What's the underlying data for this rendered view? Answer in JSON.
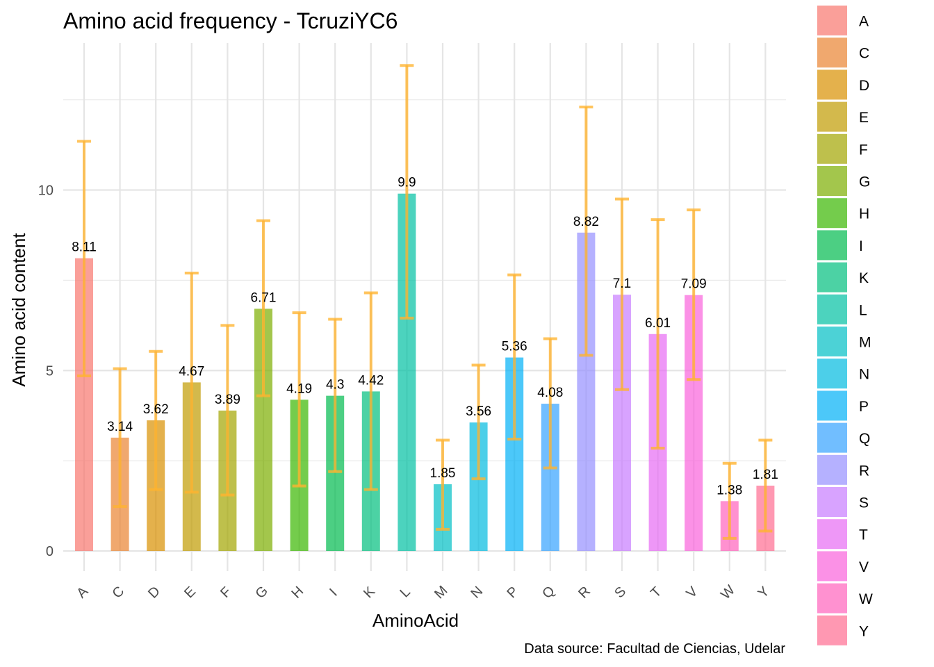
{
  "chart_data": {
    "type": "bar",
    "title": "Amino acid frequency - TcruziYC6",
    "xlabel": "AminoAcid",
    "ylabel": "Amino acid content",
    "caption": "Data source: Facultad de Ciencias, Udelar",
    "ylim": [
      0,
      13.7
    ],
    "y_ticks": [
      "0",
      "5",
      "10"
    ],
    "grid": true,
    "legend_position": "right",
    "error_bar_color": "#ffb330",
    "categories": [
      "A",
      "C",
      "D",
      "E",
      "F",
      "G",
      "H",
      "I",
      "K",
      "L",
      "M",
      "N",
      "P",
      "Q",
      "R",
      "S",
      "T",
      "V",
      "W",
      "Y"
    ],
    "values": [
      8.11,
      3.14,
      3.62,
      4.67,
      3.89,
      6.71,
      4.19,
      4.3,
      4.42,
      9.9,
      1.85,
      3.56,
      5.36,
      4.08,
      8.82,
      7.1,
      6.01,
      7.09,
      1.38,
      1.81
    ],
    "value_labels": [
      "8.11",
      "3.14",
      "3.62",
      "4.67",
      "3.89",
      "6.71",
      "4.19",
      "4.3",
      "4.42",
      "9.9",
      "1.85",
      "3.56",
      "5.36",
      "4.08",
      "8.82",
      "7.1",
      "6.01",
      "7.09",
      "1.38",
      "1.81"
    ],
    "error_low": [
      4.85,
      1.23,
      1.7,
      1.63,
      1.55,
      4.3,
      1.8,
      2.2,
      1.7,
      6.45,
      0.6,
      2.0,
      3.1,
      2.3,
      5.42,
      4.47,
      2.85,
      4.75,
      0.35,
      0.55
    ],
    "error_high": [
      11.35,
      5.05,
      5.53,
      7.7,
      6.25,
      9.15,
      6.6,
      6.42,
      7.15,
      13.45,
      3.07,
      5.15,
      7.65,
      5.88,
      12.3,
      9.75,
      9.18,
      9.45,
      2.43,
      3.07
    ],
    "colors": [
      "#f8766d",
      "#ea8331",
      "#d89000",
      "#c09b00",
      "#a3a500",
      "#7cae00",
      "#39b600",
      "#00bb4e",
      "#00bf7d",
      "#00c1a3",
      "#00bfc4",
      "#00bae0",
      "#00b0f6",
      "#35a2ff",
      "#9590ff",
      "#c77cff",
      "#e76bf3",
      "#fa62db",
      "#ff62bc",
      "#ff6c91"
    ],
    "legend": [
      "A",
      "C",
      "D",
      "E",
      "F",
      "G",
      "H",
      "I",
      "K",
      "L",
      "M",
      "N",
      "P",
      "Q",
      "R",
      "S",
      "T",
      "V",
      "W",
      "Y"
    ]
  }
}
